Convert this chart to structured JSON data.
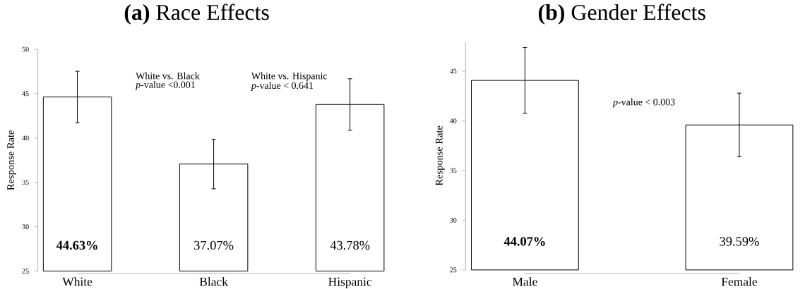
{
  "chart_data": [
    {
      "type": "bar",
      "title": "**(a)** Race Effects",
      "ylabel": "Response Rate",
      "categories": [
        "White",
        "Black",
        "Hispanic"
      ],
      "values": [
        44.63,
        37.07,
        43.78
      ],
      "errors": [
        2.9,
        2.8,
        2.9
      ],
      "value_labels": [
        "**44.63%**",
        "37.07%",
        "43.78%"
      ],
      "color": "#ffffff",
      "ylim": [
        25,
        50
      ],
      "yticks": [
        25,
        30,
        35,
        40,
        45,
        50
      ],
      "annotations": [
        "White vs. Black",
        "*p*-value <0.001",
        "White vs. Hispanic",
        "*p*-value < 0.641"
      ]
    },
    {
      "type": "bar",
      "title": "**(b)** Gender Effects",
      "ylabel": "Response Rate",
      "categories": [
        "Male",
        "Female"
      ],
      "values": [
        44.07,
        39.59
      ],
      "errors": [
        3.3,
        3.2
      ],
      "value_labels": [
        "**44.07%**",
        "39.59%"
      ],
      "color": "#ffffff",
      "ylim": [
        25,
        48
      ],
      "yticks": [
        25,
        30,
        35,
        40,
        45
      ],
      "annotations": [
        "*p*-value < 0.003"
      ]
    }
  ]
}
